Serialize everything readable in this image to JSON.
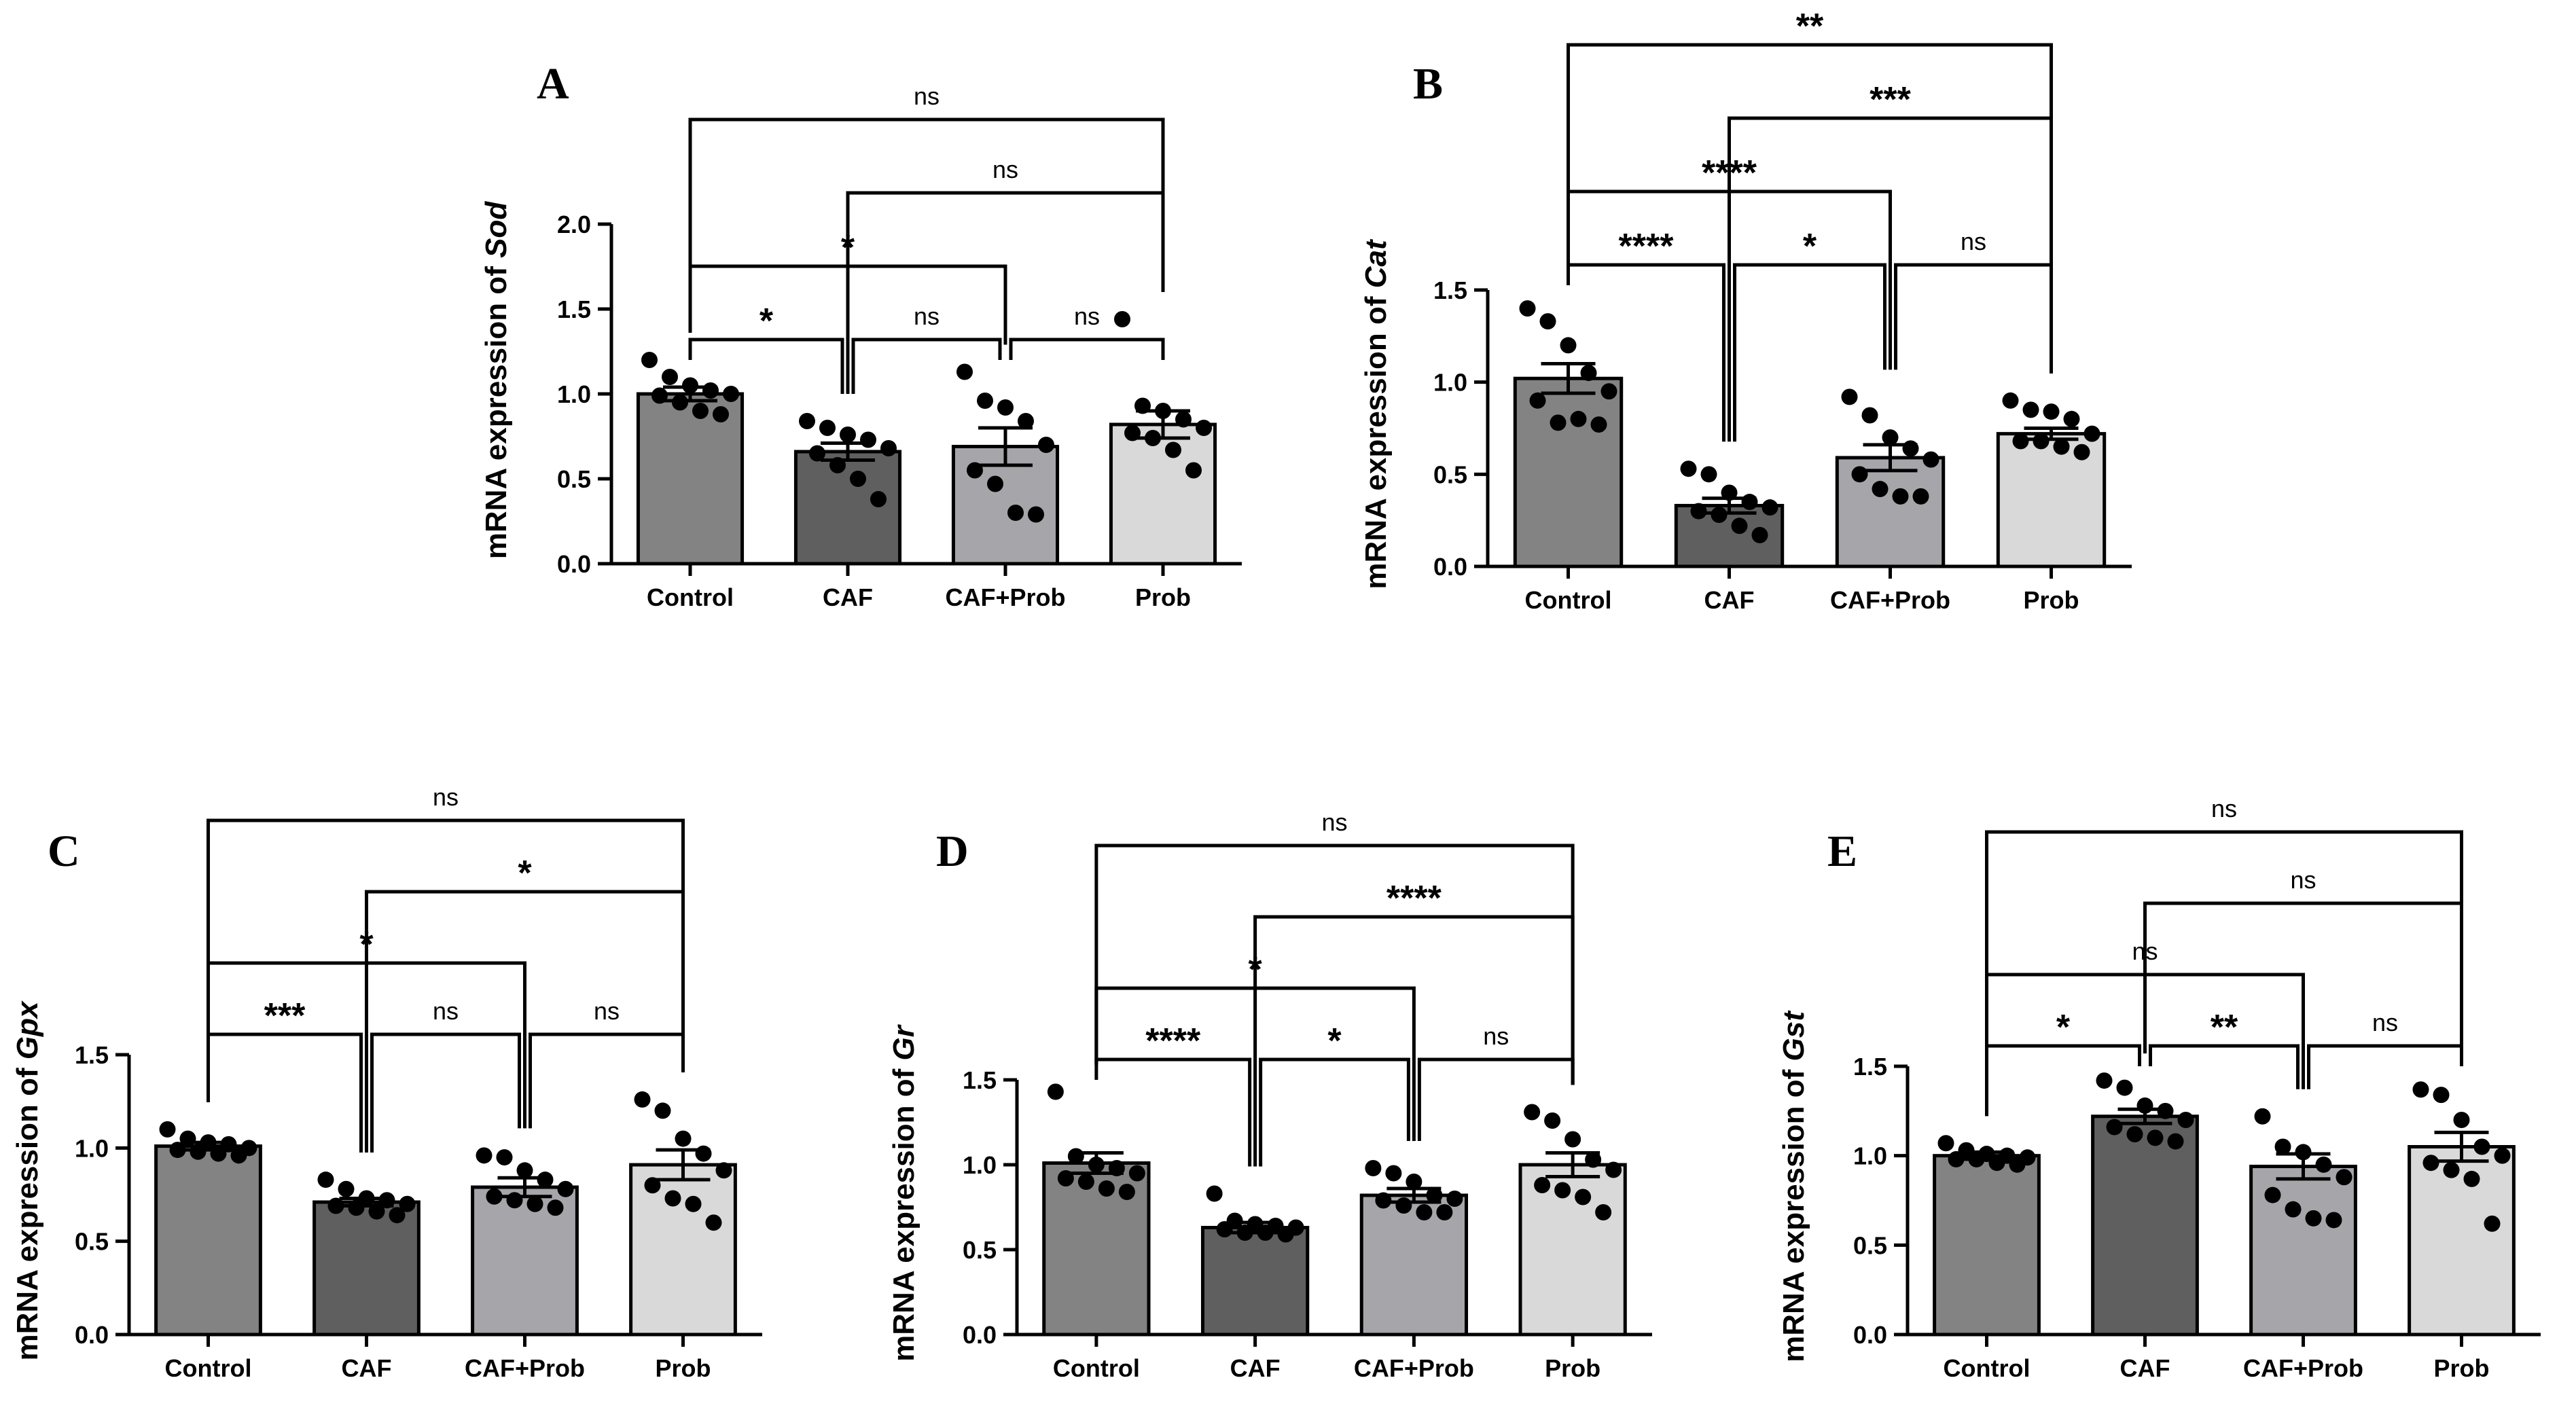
{
  "chart_data": [
    {
      "panel": "A",
      "type": "bar",
      "gene": "Sod",
      "ylabel_prefix": "mRNA expression of ",
      "categories": [
        "Control",
        "CAF",
        "CAF+Prob",
        "Prob"
      ],
      "values": [
        1.0,
        0.66,
        0.69,
        0.82
      ],
      "sem": [
        0.04,
        0.05,
        0.11,
        0.08
      ],
      "points": [
        [
          1.2,
          1.1,
          1.05,
          1.02,
          1.0,
          0.99,
          0.95,
          0.9,
          0.88
        ],
        [
          0.84,
          0.8,
          0.76,
          0.73,
          0.68,
          0.65,
          0.58,
          0.5,
          0.38
        ],
        [
          1.13,
          0.96,
          0.92,
          0.84,
          0.7,
          0.55,
          0.47,
          0.3,
          0.29
        ],
        [
          1.44,
          0.93,
          0.9,
          0.85,
          0.8,
          0.77,
          0.74,
          0.67,
          0.55
        ]
      ],
      "ylim": [
        0,
        2.0
      ],
      "yticks": [
        "0.0",
        "0.5",
        "1.0",
        "1.5",
        "2.0"
      ],
      "comparisons": [
        {
          "from": 0,
          "to": 1,
          "label": "*"
        },
        {
          "from": 1,
          "to": 2,
          "label": "ns"
        },
        {
          "from": 2,
          "to": 3,
          "label": "ns"
        },
        {
          "from": 0,
          "to": 2,
          "label": "*"
        },
        {
          "from": 1,
          "to": 3,
          "label": "ns"
        },
        {
          "from": 0,
          "to": 3,
          "label": "ns"
        }
      ]
    },
    {
      "panel": "B",
      "type": "bar",
      "gene": "Cat",
      "ylabel_prefix": "mRNA expression of ",
      "categories": [
        "Control",
        "CAF",
        "CAF+Prob",
        "Prob"
      ],
      "values": [
        1.02,
        0.33,
        0.59,
        0.72
      ],
      "sem": [
        0.08,
        0.04,
        0.07,
        0.03
      ],
      "points": [
        [
          1.4,
          1.33,
          1.2,
          1.05,
          0.95,
          0.9,
          0.78,
          0.8,
          0.77
        ],
        [
          0.53,
          0.5,
          0.4,
          0.35,
          0.32,
          0.3,
          0.28,
          0.22,
          0.17
        ],
        [
          0.92,
          0.82,
          0.7,
          0.64,
          0.58,
          0.5,
          0.42,
          0.38,
          0.38
        ],
        [
          0.9,
          0.85,
          0.84,
          0.8,
          0.72,
          0.68,
          0.68,
          0.65,
          0.62
        ]
      ],
      "ylim": [
        0,
        1.5
      ],
      "yticks": [
        "0.0",
        "0.5",
        "1.0",
        "1.5"
      ],
      "comparisons": [
        {
          "from": 0,
          "to": 1,
          "label": "****"
        },
        {
          "from": 1,
          "to": 2,
          "label": "*"
        },
        {
          "from": 2,
          "to": 3,
          "label": "ns"
        },
        {
          "from": 0,
          "to": 2,
          "label": "****"
        },
        {
          "from": 1,
          "to": 3,
          "label": "***"
        },
        {
          "from": 0,
          "to": 3,
          "label": "**"
        }
      ]
    },
    {
      "panel": "C",
      "type": "bar",
      "gene": "Gpx",
      "ylabel_prefix": "mRNA expression of ",
      "categories": [
        "Control",
        "CAF",
        "CAF+Prob",
        "Prob"
      ],
      "values": [
        1.01,
        0.71,
        0.79,
        0.91
      ],
      "sem": [
        0.02,
        0.02,
        0.05,
        0.08
      ],
      "points": [
        [
          1.1,
          1.05,
          1.03,
          1.02,
          1.0,
          0.99,
          0.98,
          0.97,
          0.96
        ],
        [
          0.83,
          0.78,
          0.73,
          0.72,
          0.7,
          0.69,
          0.68,
          0.66,
          0.64
        ],
        [
          0.96,
          0.95,
          0.88,
          0.83,
          0.78,
          0.74,
          0.72,
          0.7,
          0.68
        ],
        [
          1.26,
          1.2,
          1.05,
          0.97,
          0.88,
          0.8,
          0.73,
          0.7,
          0.6
        ]
      ],
      "ylim": [
        0,
        1.5
      ],
      "yticks": [
        "0.0",
        "0.5",
        "1.0",
        "1.5"
      ],
      "comparisons": [
        {
          "from": 0,
          "to": 1,
          "label": "***"
        },
        {
          "from": 1,
          "to": 2,
          "label": "ns"
        },
        {
          "from": 2,
          "to": 3,
          "label": "ns"
        },
        {
          "from": 0,
          "to": 2,
          "label": "*"
        },
        {
          "from": 1,
          "to": 3,
          "label": "*"
        },
        {
          "from": 0,
          "to": 3,
          "label": "ns"
        }
      ]
    },
    {
      "panel": "D",
      "type": "bar",
      "gene": "Gr",
      "ylabel_prefix": "mRNA expression of ",
      "categories": [
        "Control",
        "CAF",
        "CAF+Prob",
        "Prob"
      ],
      "values": [
        1.01,
        0.63,
        0.82,
        1.0
      ],
      "sem": [
        0.06,
        0.03,
        0.04,
        0.07
      ],
      "points": [
        [
          1.43,
          1.05,
          1.0,
          0.98,
          0.95,
          0.92,
          0.9,
          0.86,
          0.84
        ],
        [
          0.83,
          0.67,
          0.65,
          0.64,
          0.63,
          0.62,
          0.6,
          0.6,
          0.59
        ],
        [
          0.98,
          0.95,
          0.9,
          0.82,
          0.8,
          0.79,
          0.76,
          0.72,
          0.72
        ],
        [
          1.31,
          1.26,
          1.15,
          1.03,
          0.97,
          0.88,
          0.85,
          0.81,
          0.72
        ]
      ],
      "ylim": [
        0,
        1.5
      ],
      "yticks": [
        "0.0",
        "0.5",
        "1.0",
        "1.5"
      ],
      "comparisons": [
        {
          "from": 0,
          "to": 1,
          "label": "****"
        },
        {
          "from": 1,
          "to": 2,
          "label": "*"
        },
        {
          "from": 2,
          "to": 3,
          "label": "ns"
        },
        {
          "from": 0,
          "to": 2,
          "label": "*"
        },
        {
          "from": 1,
          "to": 3,
          "label": "****"
        },
        {
          "from": 0,
          "to": 3,
          "label": "ns"
        }
      ]
    },
    {
      "panel": "E",
      "type": "bar",
      "gene": "Gst",
      "ylabel_prefix": "mRNA expression of ",
      "categories": [
        "Control",
        "CAF",
        "CAF+Prob",
        "Prob"
      ],
      "values": [
        1.0,
        1.22,
        0.94,
        1.05
      ],
      "sem": [
        0.02,
        0.04,
        0.07,
        0.08
      ],
      "points": [
        [
          1.07,
          1.03,
          1.01,
          1.0,
          0.99,
          0.98,
          0.98,
          0.96,
          0.95
        ],
        [
          1.42,
          1.38,
          1.28,
          1.25,
          1.2,
          1.16,
          1.12,
          1.1,
          1.08
        ],
        [
          1.22,
          1.05,
          1.02,
          0.95,
          0.88,
          0.78,
          0.7,
          0.65,
          0.64
        ],
        [
          1.37,
          1.34,
          1.2,
          1.05,
          1.0,
          0.96,
          0.92,
          0.87,
          0.62
        ]
      ],
      "ylim": [
        0,
        1.5
      ],
      "yticks": [
        "0.0",
        "0.5",
        "1.0",
        "1.5"
      ],
      "comparisons": [
        {
          "from": 0,
          "to": 1,
          "label": "*"
        },
        {
          "from": 1,
          "to": 2,
          "label": "**"
        },
        {
          "from": 2,
          "to": 3,
          "label": "ns"
        },
        {
          "from": 0,
          "to": 2,
          "label": "ns"
        },
        {
          "from": 1,
          "to": 3,
          "label": "ns"
        },
        {
          "from": 0,
          "to": 3,
          "label": "ns"
        }
      ]
    }
  ],
  "colors": {
    "bars": [
      "#838383",
      "#5f5f5f",
      "#a6a6aa",
      "#d9d9d9"
    ],
    "axis": "#000000",
    "points": "#000000"
  }
}
